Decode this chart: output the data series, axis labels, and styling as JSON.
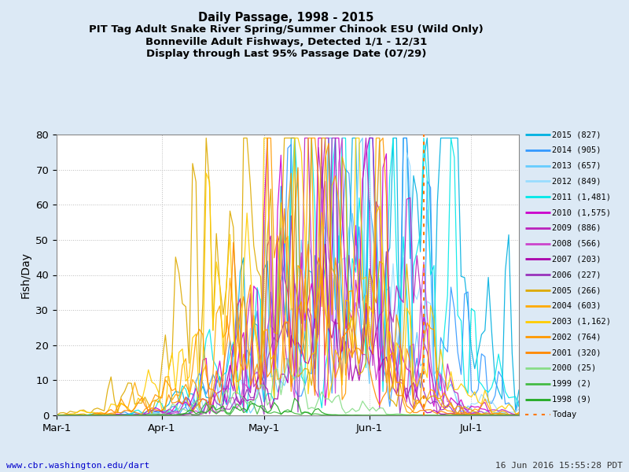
{
  "title_lines": [
    "Daily Passage, 1998 - 2015",
    "PIT Tag Adult Snake River Spring/Summer Chinook ESU (Wild Only)",
    "Bonneville Adult Fishways, Detected 1/1 - 12/31",
    "Display through Last 95% Passage Date (07/29)"
  ],
  "ylabel": "Fish/Day",
  "ylim": [
    0,
    80
  ],
  "background_color": "#dce9f5",
  "plot_background": "#ffffff",
  "footer_left": "www.cbr.washington.edu/dart",
  "footer_right": "16 Jun 2016 15:55:28 PDT",
  "today_doy": 168,
  "xstart_doy": 60,
  "xend_doy": 196,
  "xticks_doy": [
    60,
    91,
    121,
    152,
    182
  ],
  "xtick_labels": [
    "Mar-1",
    "Apr-1",
    "May-1",
    "Jun-1",
    "Jul-1"
  ],
  "yticks": [
    0,
    10,
    20,
    30,
    40,
    50,
    60,
    70,
    80
  ],
  "years": [
    2015,
    2014,
    2013,
    2012,
    2011,
    2010,
    2009,
    2008,
    2007,
    2006,
    2005,
    2004,
    2003,
    2002,
    2001,
    2000,
    1999,
    1998
  ],
  "counts": [
    827,
    905,
    657,
    849,
    1481,
    1575,
    886,
    566,
    203,
    227,
    266,
    603,
    1162,
    764,
    320,
    25,
    2,
    9
  ],
  "year_colors": {
    "2015": "#00b0e0",
    "2014": "#3399ff",
    "2013": "#66ccff",
    "2012": "#99ddff",
    "2011": "#00e8e8",
    "2010": "#cc00cc",
    "2009": "#bb22bb",
    "2008": "#cc44cc",
    "2007": "#aa00aa",
    "2006": "#9933bb",
    "2005": "#ddaa00",
    "2004": "#ffaa00",
    "2003": "#ffcc00",
    "2002": "#ff9900",
    "2001": "#ff8800",
    "2000": "#88dd88",
    "1999": "#44bb44",
    "1998": "#22aa22"
  },
  "today_color": "#ff7700",
  "grid_color": "#bbbbbb",
  "legend_labels": {
    "2015": "2015 (827)",
    "2014": "2014 (905)",
    "2013": "2013 (657)",
    "2012": "2012 (849)",
    "2011": "2011 (1,481)",
    "2010": "2010 (1,575)",
    "2009": "2009 (886)",
    "2008": "2008 (566)",
    "2007": "2007 (203)",
    "2006": "2006 (227)",
    "2005": "2005 (266)",
    "2004": "2004 (603)",
    "2003": "2003 (1,162)",
    "2002": "2002 (764)",
    "2001": "2001 (320)",
    "2000": "2000 (25)",
    "1999": "1999 (2)",
    "1998": "1998 (9)"
  }
}
